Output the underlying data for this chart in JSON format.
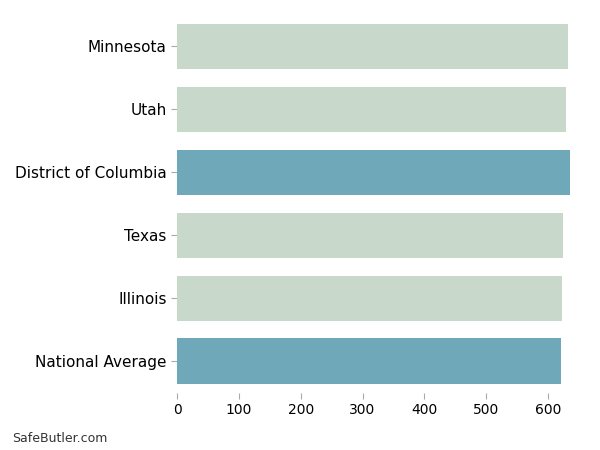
{
  "categories": [
    "National Average",
    "Illinois",
    "Texas",
    "District of Columbia",
    "Utah",
    "Minnesota"
  ],
  "values": [
    621,
    622,
    624,
    636,
    630,
    633
  ],
  "bar_colors": [
    "#6fa8b8",
    "#c8d9cc",
    "#c8d9cc",
    "#6fa8b8",
    "#c8d9cc",
    "#c8d9cc"
  ],
  "background_color": "#ffffff",
  "plot_bg_color": "#f0f0f0",
  "grid_color": "#ffffff",
  "xlim": [
    0,
    660
  ],
  "xticks": [
    0,
    100,
    200,
    300,
    400,
    500,
    600
  ],
  "watermark": "SafeButler.com",
  "bar_height": 0.72,
  "label_fontsize": 11,
  "tick_fontsize": 10,
  "watermark_fontsize": 9
}
